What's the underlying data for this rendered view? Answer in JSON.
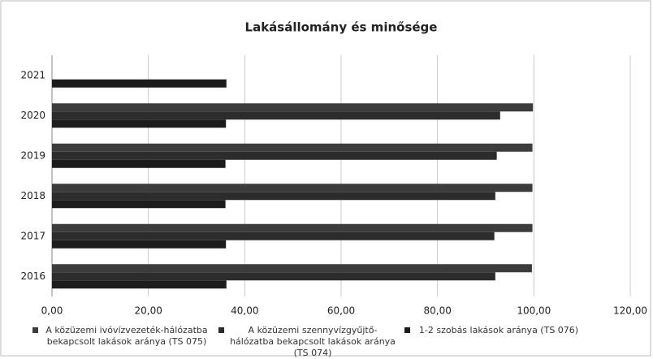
{
  "chart_data": {
    "type": "bar",
    "orientation": "horizontal",
    "title": "Lakásállomány és minősége",
    "categories": [
      "2016",
      "2017",
      "2018",
      "2019",
      "2020",
      "2021"
    ],
    "series": [
      {
        "name": "A közüzemi ivóvízvezeték-hálózatba bekapcsolt lakások aránya (TS 075)",
        "color": "#3c3c3c",
        "values": [
          99.6,
          99.7,
          99.7,
          99.7,
          99.8,
          null
        ]
      },
      {
        "name": "A közüzemi szennyvízgyűjtő-hálózatba bekapcsolt lakások aránya (TS 074)",
        "color": "#2c2c2c",
        "values": [
          92.0,
          91.8,
          92.0,
          92.3,
          93.0,
          null
        ]
      },
      {
        "name": "1-2 szobás lakások aránya (TS 076)",
        "color": "#1c1c1c",
        "values": [
          36.2,
          36.1,
          36.0,
          36.0,
          36.1,
          36.2
        ]
      }
    ],
    "xlim": [
      0,
      120
    ],
    "xticks": [
      {
        "value": 0,
        "label": "0,00"
      },
      {
        "value": 20,
        "label": "20,00"
      },
      {
        "value": 40,
        "label": "40,00"
      },
      {
        "value": 60,
        "label": "60,00"
      },
      {
        "value": 80,
        "label": "80,00"
      },
      {
        "value": 100,
        "label": "100,00"
      },
      {
        "value": 120,
        "label": "120,00"
      }
    ],
    "grid": true,
    "legend": "bottom"
  }
}
